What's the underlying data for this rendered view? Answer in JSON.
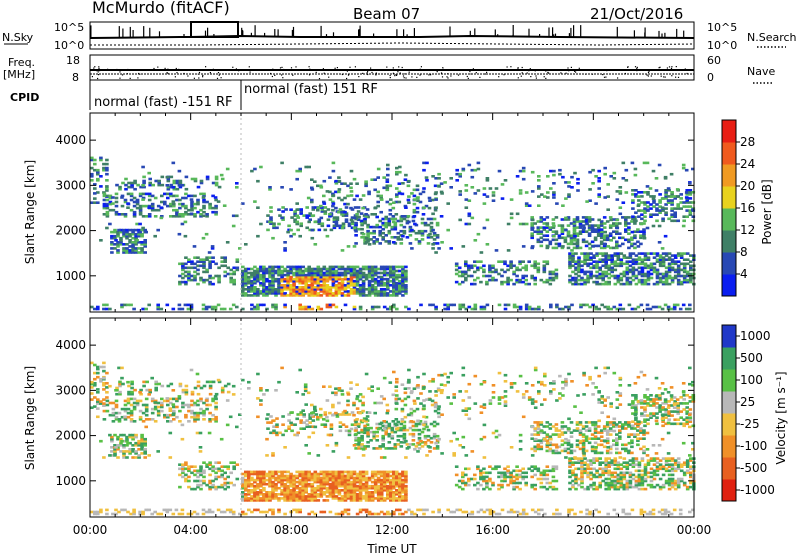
{
  "header": {
    "station": "McMurdo (fitACF)",
    "beam": "Beam 07",
    "date": "21/Oct/2016"
  },
  "top_panels": {
    "nsky_label": "N.Sky",
    "nsearch_label": "N.Search",
    "exp_hi_left": "10^5",
    "exp_lo_left": "10^0",
    "exp_hi_right": "10^5",
    "exp_lo_right": "10^0",
    "freq_label": "Freq.",
    "freq_unit": "[MHz]",
    "freq_hi": "18",
    "freq_lo": "8",
    "nave_label": "Nave",
    "nave_hi": "60",
    "nave_lo": "0",
    "cpid_label": "CPID",
    "cpid_mode_1": "normal (fast) -151 RF",
    "cpid_mode_2": "normal (fast) 151 RF"
  },
  "chart_data": [
    {
      "type": "heatmap",
      "ylabel": "Slant Range [km]",
      "yticks": [
        "1000",
        "2000",
        "3000",
        "4000"
      ],
      "ylim": [
        200,
        4600
      ],
      "xlim": [
        0,
        24
      ],
      "colorbar": {
        "label": "Power [dB]",
        "ticks": [
          "4",
          "8",
          "12",
          "16",
          "20",
          "24",
          "28"
        ],
        "colors": [
          "#0a1ef0",
          "#2848b4",
          "#3f7f66",
          "#58b85a",
          "#e8d21e",
          "#f09a22",
          "#f05a1e",
          "#e81e14"
        ]
      }
    },
    {
      "type": "heatmap",
      "ylabel": "Slant Range [km]",
      "yticks": [
        "1000",
        "2000",
        "3000",
        "4000"
      ],
      "ylim": [
        200,
        4600
      ],
      "xlim": [
        0,
        24
      ],
      "xticks": [
        "00:00",
        "04:00",
        "08:00",
        "12:00",
        "16:00",
        "20:00",
        "00:00"
      ],
      "xlabel": "Time UT",
      "colorbar": {
        "label": "Velocity [m s⁻¹]",
        "ticks": [
          "1000",
          "500",
          "100",
          "25",
          "-25",
          "-100",
          "-500",
          "-1000"
        ],
        "colors": [
          "#2038c8",
          "#3aa060",
          "#58c045",
          "#b8b8b8",
          "#f0c040",
          "#f09028",
          "#e86020",
          "#e02010"
        ]
      }
    }
  ]
}
